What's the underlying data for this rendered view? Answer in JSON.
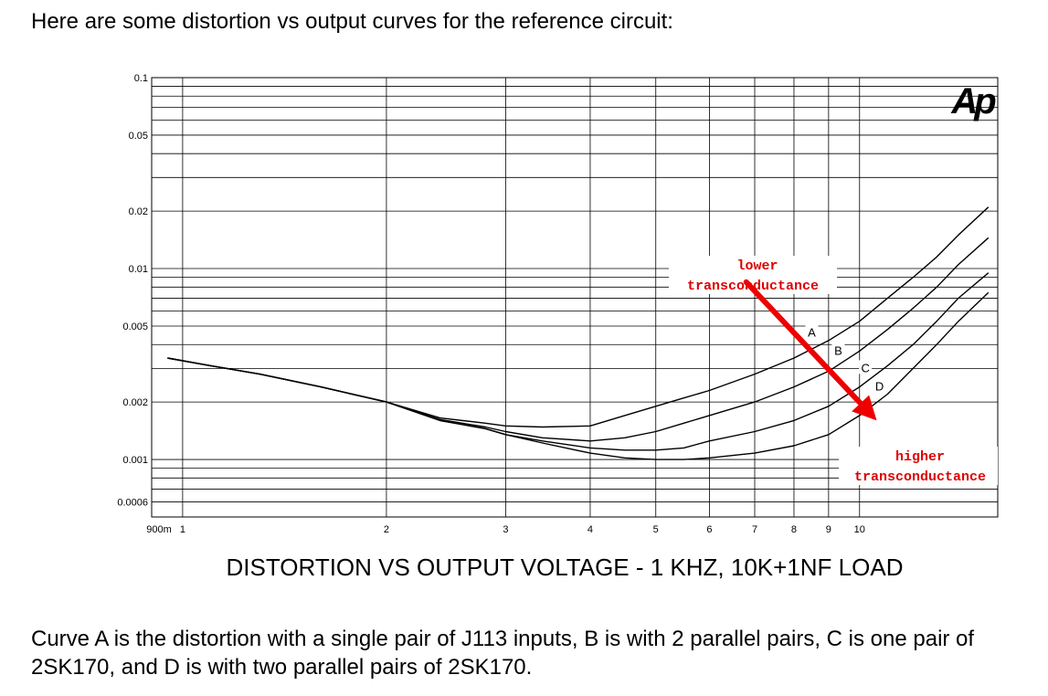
{
  "intro_text": "Here are some distortion vs output curves for the reference circuit:",
  "caption_text": "Curve A is the distortion with a single pair of J113 inputs, B is with 2 parallel pairs, C is one pair of 2SK170, and D is with two parallel pairs of 2SK170.",
  "chart_data": {
    "type": "line",
    "title": "DISTORTION VS OUTPUT VOLTAGE - 1 KHZ, 10K+1NF LOAD",
    "logo": "Ap",
    "x_scale": "log",
    "y_scale": "log",
    "xlim": [
      0.9,
      16
    ],
    "ylim": [
      0.0005,
      0.1
    ],
    "grid": true,
    "x_ticks": [
      {
        "value": 0.9,
        "label": "900m"
      },
      {
        "value": 1,
        "label": "1"
      },
      {
        "value": 2,
        "label": "2"
      },
      {
        "value": 3,
        "label": "3"
      },
      {
        "value": 4,
        "label": "4"
      },
      {
        "value": 5,
        "label": "5"
      },
      {
        "value": 6,
        "label": "6"
      },
      {
        "value": 7,
        "label": "7"
      },
      {
        "value": 8,
        "label": "8"
      },
      {
        "value": 9,
        "label": "9"
      },
      {
        "value": 10,
        "label": "10"
      }
    ],
    "y_ticks": [
      {
        "value": 0.1,
        "label": "0.1"
      },
      {
        "value": 0.05,
        "label": "0.05"
      },
      {
        "value": 0.02,
        "label": "0.02"
      },
      {
        "value": 0.01,
        "label": "0.01"
      },
      {
        "value": 0.005,
        "label": "0.005"
      },
      {
        "value": 0.002,
        "label": "0.002"
      },
      {
        "value": 0.001,
        "label": "0.001"
      },
      {
        "value": 0.0006,
        "label": "0.0006"
      }
    ],
    "series": [
      {
        "name": "A",
        "label_at": [
          8.5,
          0.0046
        ],
        "x": [
          0.95,
          1.1,
          1.3,
          1.6,
          2.0,
          2.4,
          2.8,
          3.0,
          3.4,
          4.0,
          4.5,
          5.0,
          5.5,
          6.0,
          7.0,
          8.0,
          9.0,
          10.0,
          11.0,
          12.0,
          13.0,
          14.0,
          15.5
        ],
        "y": [
          0.0034,
          0.0031,
          0.0028,
          0.0024,
          0.002,
          0.00165,
          0.00155,
          0.0015,
          0.00148,
          0.0015,
          0.0017,
          0.0019,
          0.0021,
          0.0023,
          0.0028,
          0.0034,
          0.0042,
          0.0053,
          0.007,
          0.009,
          0.0115,
          0.015,
          0.021
        ]
      },
      {
        "name": "B",
        "label_at": [
          9.3,
          0.0037
        ],
        "x": [
          0.95,
          1.1,
          1.3,
          1.6,
          2.0,
          2.4,
          2.8,
          3.0,
          3.4,
          4.0,
          4.5,
          5.0,
          5.5,
          6.0,
          7.0,
          8.0,
          9.0,
          10.0,
          11.0,
          12.0,
          13.0,
          14.0,
          15.5
        ],
        "y": [
          0.0034,
          0.0031,
          0.0028,
          0.0024,
          0.002,
          0.00162,
          0.00148,
          0.0014,
          0.0013,
          0.00125,
          0.0013,
          0.0014,
          0.00155,
          0.0017,
          0.002,
          0.0024,
          0.0029,
          0.0037,
          0.0048,
          0.0062,
          0.008,
          0.0105,
          0.0145
        ]
      },
      {
        "name": "C",
        "label_at": [
          10.2,
          0.003
        ],
        "x": [
          0.95,
          1.1,
          1.3,
          1.6,
          2.0,
          2.4,
          2.8,
          3.0,
          3.4,
          4.0,
          4.5,
          5.0,
          5.5,
          6.0,
          7.0,
          8.0,
          9.0,
          10.0,
          11.0,
          12.0,
          13.0,
          14.0,
          15.5
        ],
        "y": [
          0.0034,
          0.0031,
          0.0028,
          0.0024,
          0.002,
          0.0016,
          0.00145,
          0.00135,
          0.00125,
          0.00115,
          0.00112,
          0.00112,
          0.00115,
          0.00125,
          0.0014,
          0.0016,
          0.0019,
          0.0024,
          0.0031,
          0.004,
          0.0053,
          0.007,
          0.0095
        ]
      },
      {
        "name": "D",
        "label_at": [
          10.7,
          0.0024
        ],
        "x": [
          0.95,
          1.1,
          1.3,
          1.6,
          2.0,
          2.4,
          2.8,
          3.0,
          3.4,
          4.0,
          4.5,
          5.0,
          5.5,
          6.0,
          7.0,
          8.0,
          9.0,
          10.0,
          11.0,
          12.0,
          13.0,
          14.0,
          15.5
        ],
        "y": [
          0.0034,
          0.0031,
          0.0028,
          0.0024,
          0.002,
          0.0016,
          0.00145,
          0.00135,
          0.00122,
          0.00108,
          0.00102,
          0.001,
          0.001,
          0.00102,
          0.00108,
          0.00118,
          0.00135,
          0.0017,
          0.0022,
          0.003,
          0.004,
          0.0053,
          0.0075
        ]
      }
    ],
    "annotations": [
      {
        "text": "lower",
        "color": "#dd0000"
      },
      {
        "text": "transconductance",
        "color": "#dd0000"
      },
      {
        "text": "higher",
        "color": "#dd0000"
      },
      {
        "text": "transconductance",
        "color": "#dd0000"
      }
    ],
    "arrow_color": "#ee0000",
    "arrow_from": [
      6.8,
      0.0085
    ],
    "arrow_to": [
      10.6,
      0.0016
    ]
  }
}
